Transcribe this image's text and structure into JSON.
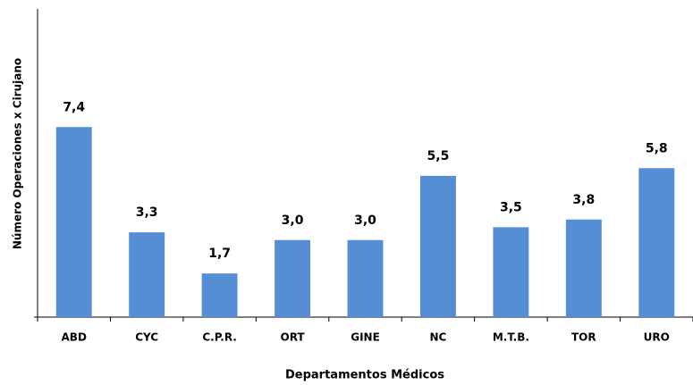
{
  "chart_data": {
    "type": "bar",
    "x_label": "Departamentos Médicos",
    "y_label": "Número Operaciones x Cirujano",
    "categories": [
      "ABD",
      "CYC",
      "C.P.R.",
      "ORT",
      "GINE",
      "NC",
      "M.T.B.",
      "TOR",
      "URO"
    ],
    "values": [
      7.4,
      3.3,
      1.7,
      3.0,
      3.0,
      5.5,
      3.5,
      3.8,
      5.8
    ],
    "value_labels": [
      "7,4",
      "3,3",
      "1,7",
      "3,0",
      "3,0",
      "5,5",
      "3,5",
      "3,8",
      "5,8"
    ],
    "color": "#558ed5",
    "ylim": [
      0,
      12
    ]
  }
}
